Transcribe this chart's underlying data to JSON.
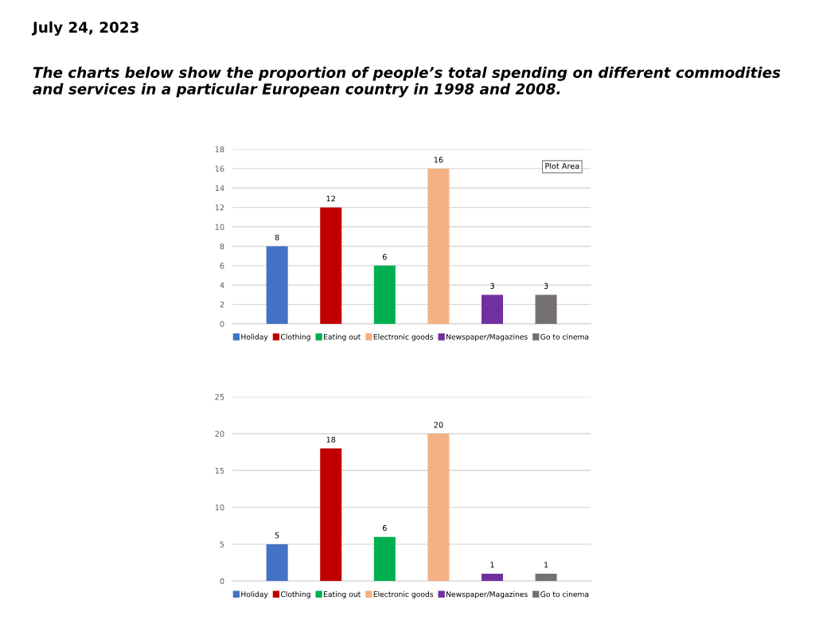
{
  "chart_data": [
    {
      "type": "bar",
      "title": "The charts below show the proportion of people’s total spending on different commodities and services in a particular European country in 1998 and 2008.",
      "annotations": [
        "July 24, 2023",
        "Plot Area"
      ],
      "categories": [
        null
      ],
      "series": [
        {
          "name": "Holiday",
          "color": "#4472c4",
          "values": [
            8
          ]
        },
        {
          "name": "Clothing",
          "color": "#c00000",
          "values": [
            12
          ]
        },
        {
          "name": "Eating out",
          "color": "#00b050",
          "values": [
            6
          ]
        },
        {
          "name": "Electronic goods",
          "color": "#f4b183",
          "values": [
            16
          ]
        },
        {
          "name": "Newspaper/Magazines",
          "color": "#7030a0",
          "values": [
            3
          ]
        },
        {
          "name": "Go to cinema",
          "color": "#767171",
          "values": [
            3
          ]
        }
      ],
      "ylim": [
        0,
        18
      ],
      "yticks": [
        0,
        2,
        4,
        6,
        8,
        10,
        12,
        14,
        16,
        18
      ],
      "grid": "y",
      "legend": "bottom",
      "data_labels": true
    },
    {
      "type": "bar",
      "categories": [
        null
      ],
      "series": [
        {
          "name": "Holiday",
          "color": "#4472c4",
          "values": [
            5
          ]
        },
        {
          "name": "Clothing",
          "color": "#c00000",
          "values": [
            18
          ]
        },
        {
          "name": "Eating out",
          "color": "#00b050",
          "values": [
            6
          ]
        },
        {
          "name": "Electronic goods",
          "color": "#f4b183",
          "values": [
            20
          ]
        },
        {
          "name": "Newspaper/Magazines",
          "color": "#7030a0",
          "values": [
            1
          ]
        },
        {
          "name": "Go to cinema",
          "color": "#767171",
          "values": [
            1
          ]
        }
      ],
      "ylim": [
        0,
        25
      ],
      "yticks": [
        0,
        5,
        10,
        15,
        20,
        25
      ],
      "grid": "y",
      "legend": "bottom",
      "data_labels": true
    }
  ]
}
